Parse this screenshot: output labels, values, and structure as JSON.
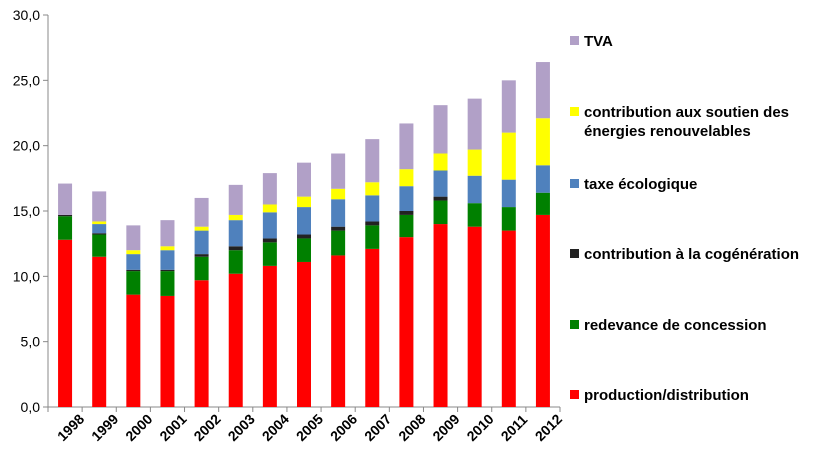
{
  "chart_data": {
    "type": "bar",
    "stacked": true,
    "title": "",
    "xlabel": "",
    "ylabel": "",
    "ylim": [
      0,
      30
    ],
    "y_ticks": [
      "0,0",
      "5,0",
      "10,0",
      "15,0",
      "20,0",
      "25,0",
      "30,0"
    ],
    "grid": false,
    "legend_position": "right",
    "categories": [
      "1998",
      "1999",
      "2000",
      "2001",
      "2002",
      "2003",
      "2004",
      "2005",
      "2006",
      "2007",
      "2008",
      "2009",
      "2010",
      "2011",
      "2012"
    ],
    "series": [
      {
        "name": "production/distribution",
        "color": "#ff0000",
        "values": [
          12.8,
          11.5,
          8.6,
          8.5,
          9.7,
          10.2,
          10.8,
          11.1,
          11.6,
          12.1,
          13.0,
          14.0,
          13.8,
          13.5,
          14.7
        ]
      },
      {
        "name": "redevance de concession",
        "color": "#008000",
        "values": [
          1.8,
          1.7,
          1.8,
          1.9,
          1.8,
          1.8,
          1.8,
          1.8,
          1.9,
          1.8,
          1.7,
          1.8,
          1.8,
          1.8,
          1.7
        ]
      },
      {
        "name": "contribution à la cogénération",
        "color": "#222222",
        "values": [
          0.1,
          0.1,
          0.1,
          0.1,
          0.2,
          0.3,
          0.3,
          0.3,
          0.3,
          0.3,
          0.3,
          0.3,
          0.0,
          0.0,
          0.0
        ]
      },
      {
        "name": "taxe écologique",
        "color": "#4f81bd",
        "values": [
          0.0,
          0.7,
          1.2,
          1.5,
          1.8,
          2.0,
          2.0,
          2.1,
          2.1,
          2.0,
          1.9,
          2.0,
          2.1,
          2.1,
          2.1
        ]
      },
      {
        "name": "contribution aux soutien des énergies renouvelables",
        "color": "#ffff00",
        "values": [
          0.0,
          0.2,
          0.3,
          0.3,
          0.3,
          0.4,
          0.6,
          0.8,
          0.8,
          1.0,
          1.3,
          1.3,
          2.0,
          3.6,
          3.6
        ]
      },
      {
        "name": "TVA",
        "color": "#b1a0c7",
        "values": [
          2.4,
          2.3,
          1.9,
          2.0,
          2.2,
          2.3,
          2.4,
          2.6,
          2.7,
          3.3,
          3.5,
          3.7,
          3.9,
          4.0,
          4.3
        ]
      }
    ],
    "legend_entries": [
      {
        "name": "TVA",
        "color": "#b1a0c7"
      },
      {
        "name_lines": [
          "contribution aux soutien des",
          "énergies renouvelables"
        ],
        "color": "#ffff00"
      },
      {
        "name": "taxe écologique",
        "color": "#4f81bd"
      },
      {
        "name": "contribution à la cogénération",
        "color": "#222222"
      },
      {
        "name": "redevance de concession",
        "color": "#008000"
      },
      {
        "name": "production/distribution",
        "color": "#ff0000"
      }
    ]
  }
}
